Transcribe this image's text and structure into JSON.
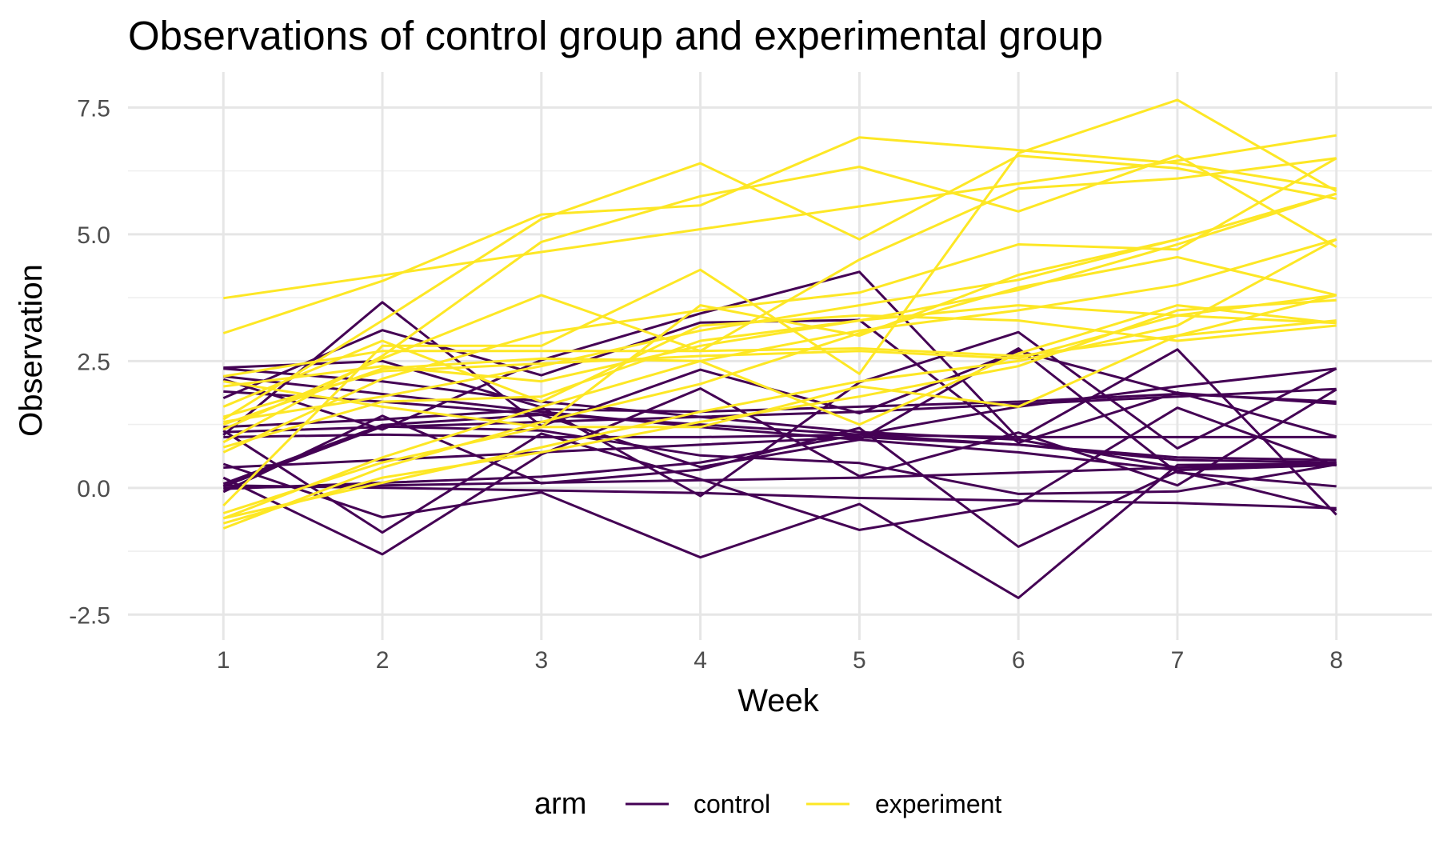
{
  "chart_data": {
    "type": "line",
    "title": "Observations of control group and experimental group",
    "xlabel": "Week",
    "ylabel": "Observation",
    "x": [
      1,
      2,
      3,
      4,
      5,
      6,
      7,
      8
    ],
    "xlim": [
      0.4,
      8.6
    ],
    "ylim": [
      -2.5,
      7.5
    ],
    "x_ticks": [
      "1",
      "2",
      "3",
      "4",
      "5",
      "6",
      "7",
      "8"
    ],
    "y_ticks": [
      "-2.5",
      "0.0",
      "2.5",
      "5.0",
      "7.5"
    ],
    "y_tick_values": [
      -2.5,
      0.0,
      2.5,
      5.0,
      7.5
    ],
    "grid": true,
    "legend": {
      "title": "arm",
      "position": "bottom",
      "entries": [
        {
          "label": "control",
          "color": "#440154"
        },
        {
          "label": "experiment",
          "color": "#fde725"
        }
      ]
    },
    "series": [
      {
        "group": "control",
        "values": [
          0.2,
          -1.31,
          0.66,
          1.96,
          0.23,
          1.09,
          0.05,
          1.94
        ]
      },
      {
        "group": "control",
        "values": [
          1.13,
          -0.88,
          1.07,
          0.17,
          -0.83,
          -0.31,
          1.58,
          0.44
        ]
      },
      {
        "group": "control",
        "values": [
          1.77,
          3.11,
          2.22,
          3.26,
          3.31,
          0.89,
          1.88,
          1.01
        ]
      },
      {
        "group": "control",
        "values": [
          1.04,
          3.66,
          1.22,
          2.33,
          1.47,
          2.7,
          1.87,
          1.66
        ]
      },
      {
        "group": "control",
        "values": [
          0.47,
          -0.58,
          -0.09,
          -1.37,
          -0.32,
          -2.17,
          0.45,
          0.48
        ]
      },
      {
        "group": "control",
        "values": [
          2.37,
          2.5,
          1.59,
          -0.16,
          2.08,
          3.07,
          0.78,
          2.35
        ]
      },
      {
        "group": "control",
        "values": [
          0.03,
          1.21,
          1.13,
          0.64,
          0.49,
          -0.12,
          -0.07,
          0.46
        ]
      },
      {
        "group": "control",
        "values": [
          -0.08,
          1.42,
          0.09,
          0.36,
          1.18,
          -1.16,
          0.33,
          -0.44
        ]
      },
      {
        "group": "control",
        "values": [
          0.08,
          1.24,
          1.44,
          0.41,
          0.95,
          2.75,
          0.3,
          0.03
        ]
      },
      {
        "group": "control",
        "values": [
          2.14,
          1.15,
          2.52,
          3.44,
          4.26,
          0.97,
          2.73,
          -0.53
        ]
      },
      {
        "group": "control",
        "values": [
          -0.02,
          0.1,
          0.22,
          0.5,
          1.05,
          1.6,
          2.0,
          2.35
        ]
      },
      {
        "group": "control",
        "values": [
          2.2,
          1.85,
          1.5,
          1.2,
          0.95,
          0.7,
          0.35,
          0.45
        ]
      },
      {
        "group": "control",
        "values": [
          1.1,
          1.2,
          1.3,
          1.4,
          1.5,
          1.65,
          1.8,
          1.95
        ]
      },
      {
        "group": "control",
        "values": [
          0.05,
          0.0,
          -0.05,
          -0.1,
          -0.2,
          -0.25,
          -0.3,
          -0.4
        ]
      },
      {
        "group": "control",
        "values": [
          1.0,
          1.05,
          1.0,
          1.0,
          1.05,
          1.0,
          1.0,
          1.0
        ]
      },
      {
        "group": "control",
        "values": [
          0.4,
          0.55,
          0.7,
          0.85,
          1.0,
          0.85,
          0.6,
          0.55
        ]
      },
      {
        "group": "control",
        "values": [
          1.9,
          1.7,
          1.45,
          1.25,
          1.05,
          0.85,
          0.55,
          0.5
        ]
      },
      {
        "group": "control",
        "values": [
          0.0,
          0.05,
          0.1,
          0.15,
          0.2,
          0.3,
          0.4,
          0.5
        ]
      },
      {
        "group": "control",
        "values": [
          2.35,
          2.1,
          1.7,
          1.4,
          1.1,
          0.95,
          0.4,
          0.45
        ]
      },
      {
        "group": "control",
        "values": [
          1.2,
          1.35,
          1.55,
          1.5,
          1.6,
          1.7,
          1.85,
          1.7
        ]
      },
      {
        "group": "experiment",
        "values": [
          3.74,
          4.19,
          4.65,
          5.1,
          5.55,
          6.0,
          6.45,
          6.95
        ]
      },
      {
        "group": "experiment",
        "values": [
          3.05,
          4.08,
          5.39,
          5.57,
          6.91,
          6.66,
          6.4,
          5.9
        ]
      },
      {
        "group": "experiment",
        "values": [
          1.35,
          3.3,
          5.3,
          6.4,
          4.9,
          6.55,
          6.3,
          5.7
        ]
      },
      {
        "group": "experiment",
        "values": [
          0.9,
          2.6,
          4.85,
          5.75,
          6.33,
          5.45,
          6.55,
          4.75
        ]
      },
      {
        "group": "experiment",
        "values": [
          1.15,
          2.55,
          3.8,
          2.7,
          4.5,
          5.9,
          6.1,
          6.5
        ]
      },
      {
        "group": "experiment",
        "values": [
          -0.35,
          2.8,
          2.8,
          4.3,
          2.25,
          6.6,
          7.65,
          5.85
        ]
      },
      {
        "group": "experiment",
        "values": [
          0.7,
          2.15,
          3.05,
          3.5,
          3.85,
          4.8,
          4.7,
          6.5
        ]
      },
      {
        "group": "experiment",
        "values": [
          2.1,
          1.6,
          1.2,
          3.6,
          3.0,
          4.2,
          4.9,
          5.8
        ]
      },
      {
        "group": "experiment",
        "values": [
          1.25,
          2.35,
          2.55,
          2.5,
          1.25,
          2.65,
          3.6,
          3.25
        ]
      },
      {
        "group": "experiment",
        "values": [
          -0.6,
          0.1,
          0.8,
          1.5,
          2.1,
          2.5,
          3.2,
          4.9
        ]
      },
      {
        "group": "experiment",
        "values": [
          -0.8,
          0.4,
          1.3,
          2.05,
          3.05,
          3.95,
          4.55,
          3.8
        ]
      },
      {
        "group": "experiment",
        "values": [
          0.8,
          1.7,
          1.8,
          2.9,
          3.3,
          3.6,
          3.4,
          3.8
        ]
      },
      {
        "group": "experiment",
        "values": [
          2.2,
          2.7,
          2.7,
          2.7,
          2.75,
          2.6,
          3.0,
          3.3
        ]
      },
      {
        "group": "experiment",
        "values": [
          1.3,
          1.8,
          2.4,
          3.1,
          3.6,
          4.1,
          4.9,
          5.8
        ]
      },
      {
        "group": "experiment",
        "values": [
          -0.5,
          0.5,
          1.2,
          1.2,
          2.0,
          1.6,
          3.0,
          3.8
        ]
      },
      {
        "group": "experiment",
        "values": [
          -0.7,
          0.2,
          0.7,
          1.3,
          1.8,
          2.4,
          3.5,
          3.7
        ]
      },
      {
        "group": "experiment",
        "values": [
          1.4,
          2.3,
          2.45,
          2.6,
          2.7,
          2.55,
          3.4,
          3.25
        ]
      },
      {
        "group": "experiment",
        "values": [
          2.0,
          2.4,
          2.1,
          2.8,
          3.3,
          3.9,
          4.8,
          5.8
        ]
      },
      {
        "group": "experiment",
        "values": [
          1.6,
          2.9,
          1.7,
          3.2,
          3.4,
          3.3,
          2.9,
          3.2
        ]
      },
      {
        "group": "experiment",
        "values": [
          -0.6,
          0.6,
          1.6,
          2.5,
          3.1,
          3.5,
          4.0,
          4.9
        ]
      }
    ]
  }
}
